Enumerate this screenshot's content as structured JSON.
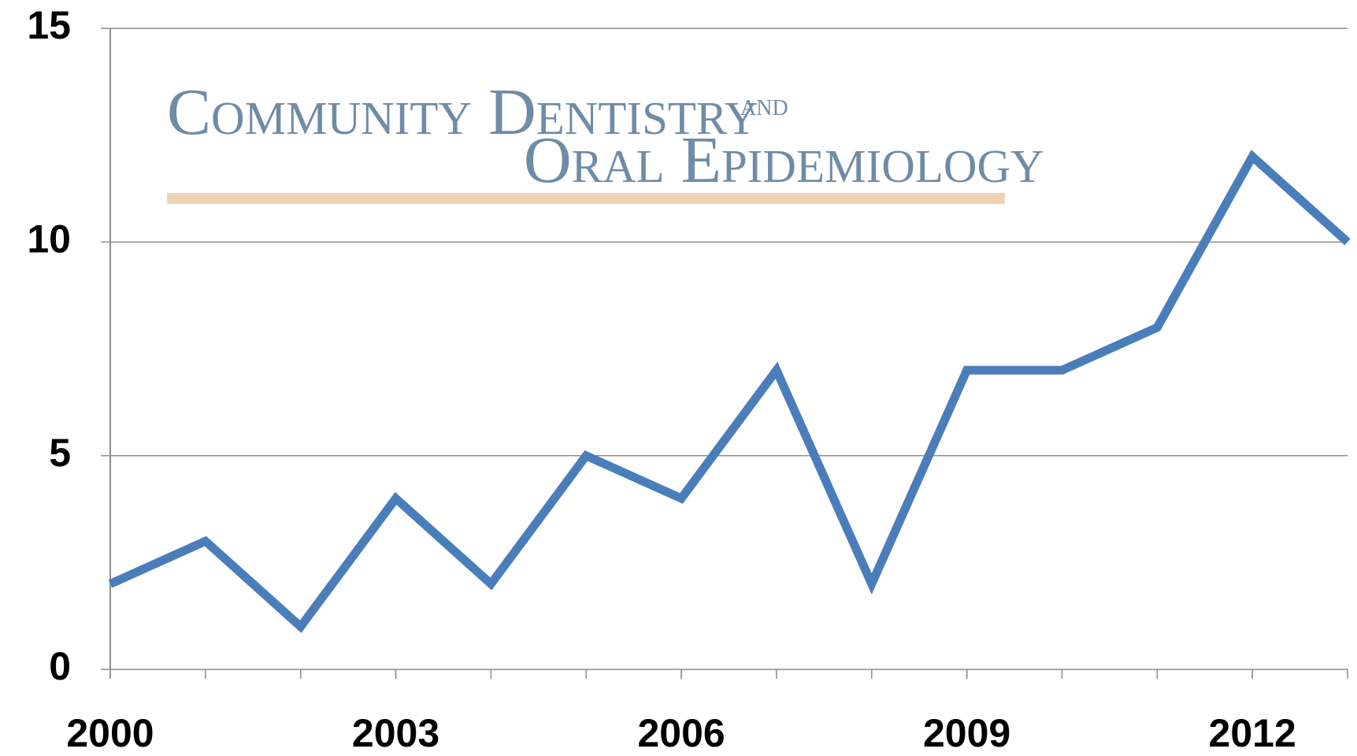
{
  "chart_data": {
    "type": "line",
    "logo": {
      "line1": "Community Dentistry",
      "and": "and",
      "line2": "Oral Epidemiology"
    },
    "x": [
      2000,
      2001,
      2002,
      2003,
      2004,
      2005,
      2006,
      2007,
      2008,
      2009,
      2010,
      2011,
      2012,
      2013
    ],
    "series": [
      {
        "color": "#4a7ebb",
        "values": [
          2,
          3,
          1,
          4,
          2,
          5,
          4,
          7,
          2,
          7,
          7,
          8,
          12,
          10
        ]
      }
    ],
    "xlim": [
      2000,
      2013
    ],
    "xticks": [
      2000,
      2003,
      2006,
      2009,
      2012
    ],
    "xminorticks": [
      2000,
      2001,
      2002,
      2003,
      2004,
      2005,
      2006,
      2007,
      2008,
      2009,
      2010,
      2011,
      2012,
      2013
    ],
    "ylim": [
      0,
      15
    ],
    "yticks": [
      0,
      5,
      10,
      15
    ],
    "grid": true
  }
}
